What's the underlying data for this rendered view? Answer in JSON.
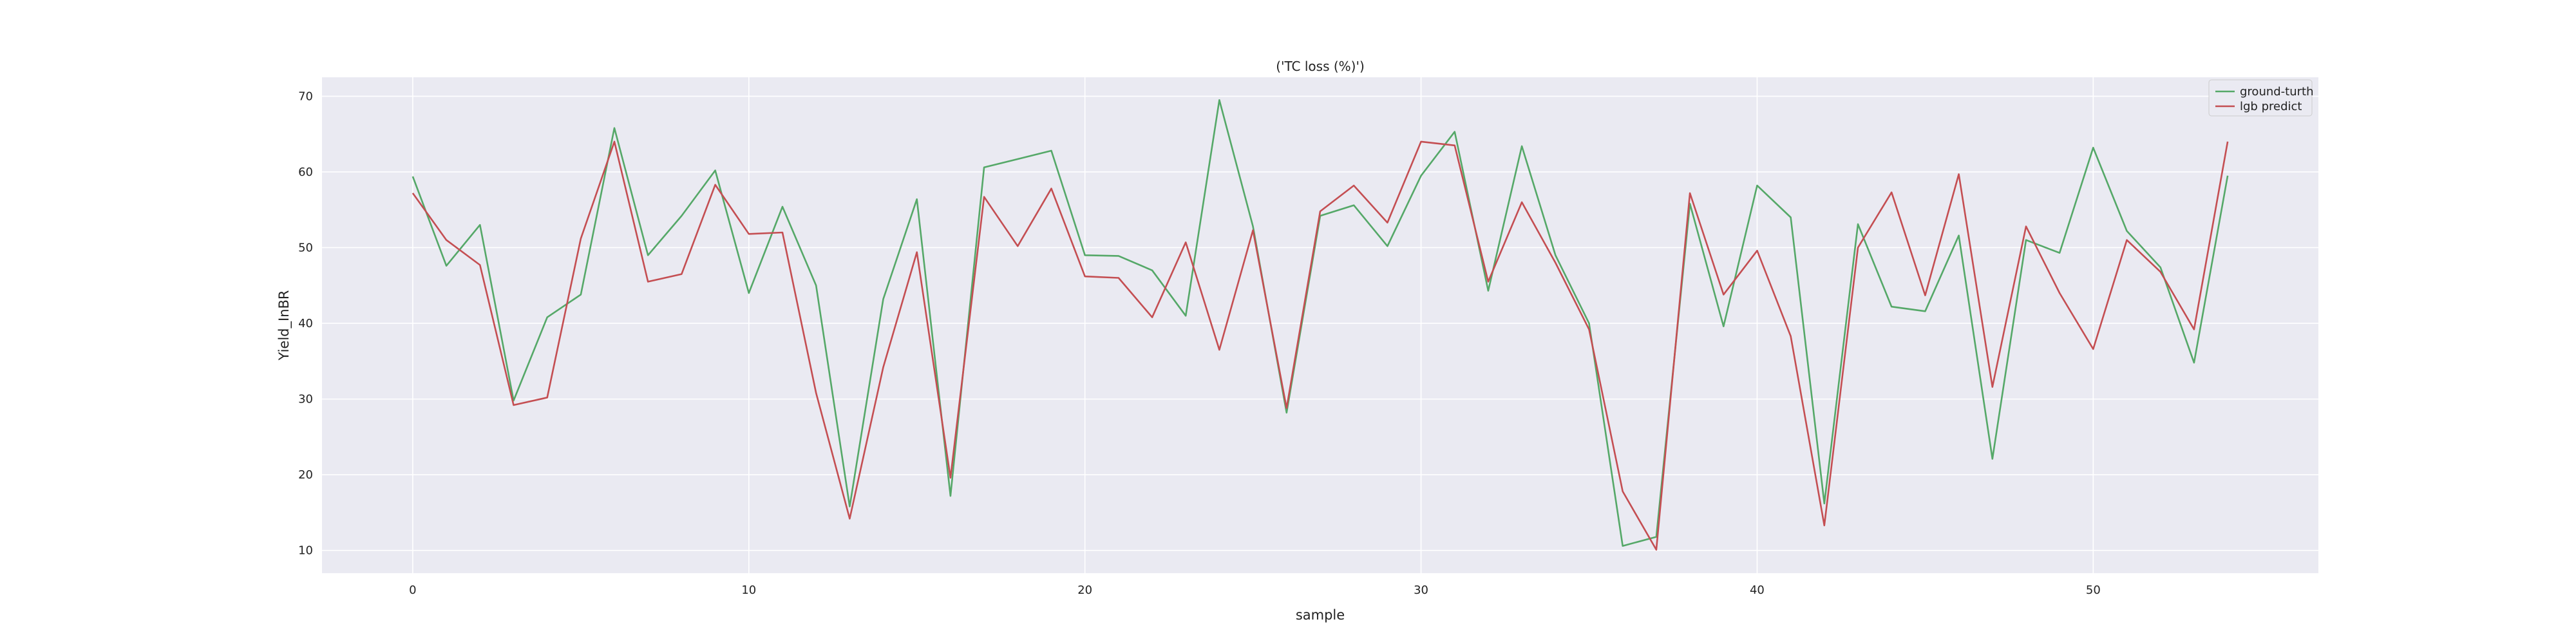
{
  "chart_data": {
    "type": "line",
    "title": "('TC loss (%)')",
    "xlabel": "sample",
    "ylabel": "Yield_InBR",
    "xlim": [
      -2.7,
      56.7
    ],
    "ylim": [
      7.0,
      72.5
    ],
    "xticks": [
      0,
      10,
      20,
      30,
      40,
      50
    ],
    "yticks": [
      10,
      20,
      30,
      40,
      50,
      60,
      70
    ],
    "grid": true,
    "legend_position": "top-right",
    "x": [
      0,
      1,
      2,
      3,
      4,
      5,
      6,
      7,
      8,
      9,
      10,
      11,
      12,
      13,
      14,
      15,
      16,
      17,
      18,
      19,
      20,
      21,
      22,
      23,
      24,
      25,
      26,
      27,
      28,
      29,
      30,
      31,
      32,
      33,
      34,
      35,
      36,
      37,
      38,
      39,
      40,
      41,
      42,
      43,
      44,
      45,
      46,
      47,
      48,
      49,
      50,
      51,
      52,
      53,
      54
    ],
    "series": [
      {
        "name": "ground-turth",
        "color": "#55a868",
        "values": [
          59.4,
          47.6,
          53.0,
          29.8,
          40.8,
          43.8,
          65.8,
          49.0,
          54.2,
          60.2,
          44.0,
          55.4,
          45.0,
          15.8,
          43.2,
          56.4,
          17.2,
          60.6,
          61.7,
          62.8,
          49.0,
          48.9,
          47.0,
          41.0,
          69.5,
          52.8,
          28.2,
          54.2,
          55.6,
          50.2,
          59.5,
          65.3,
          44.3,
          63.4,
          49.0,
          40.0,
          10.6,
          11.8,
          55.8,
          39.6,
          58.2,
          54.0,
          16.2,
          53.1,
          42.2,
          41.6,
          51.6,
          22.1,
          51.0,
          49.3,
          63.2,
          52.2,
          47.4,
          34.8,
          59.5
        ]
      },
      {
        "name": "lgb predict",
        "color": "#c44e52",
        "values": [
          57.2,
          51.0,
          47.7,
          29.2,
          30.2,
          51.2,
          64.0,
          45.5,
          46.5,
          58.3,
          51.8,
          52.0,
          30.8,
          14.2,
          34.2,
          49.4,
          19.6,
          56.7,
          50.2,
          57.8,
          46.2,
          46.0,
          40.8,
          50.7,
          36.5,
          52.3,
          28.8,
          54.8,
          58.2,
          53.3,
          64.0,
          63.5,
          45.5,
          56.0,
          48.0,
          39.2,
          17.8,
          10.1,
          57.2,
          43.8,
          49.6,
          38.3,
          13.3,
          50.0,
          57.3,
          43.7,
          59.7,
          31.6,
          52.8,
          44.0,
          36.6,
          51.0,
          46.8,
          39.2,
          64.0
        ]
      }
    ]
  }
}
